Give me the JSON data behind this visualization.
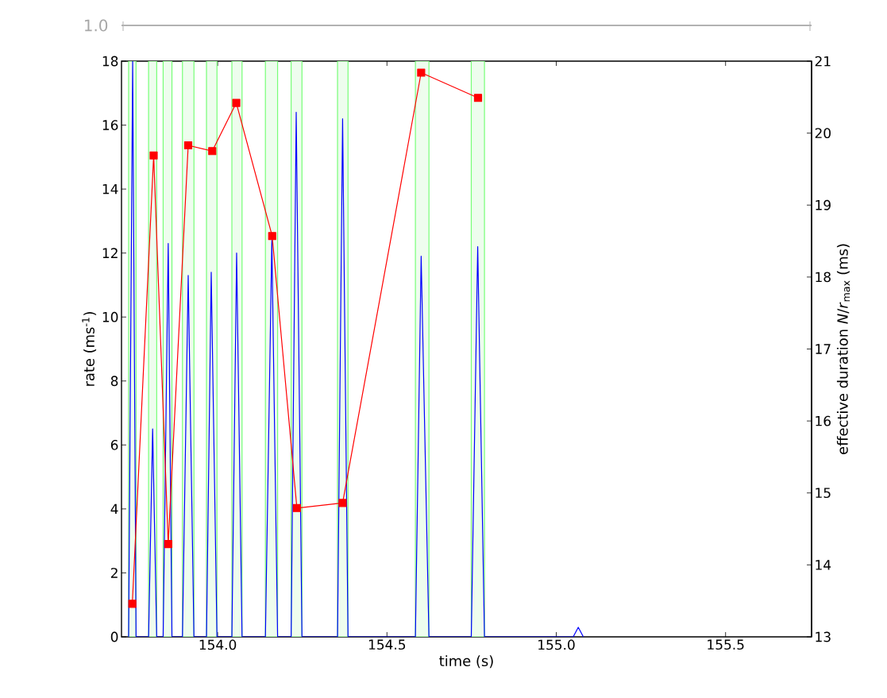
{
  "chart_data": {
    "type": "line",
    "xlabel": "time (s)",
    "ylabel": "rate (ms$^{-1}$)",
    "y2label": "effective duration *N*/*r*$_{max}$ (ms)",
    "annotations": [
      "1.0"
    ],
    "xlim": [
      153.716,
      155.754
    ],
    "ylim": [
      0,
      18
    ],
    "y2lim": [
      13,
      21
    ],
    "xticks": [
      {
        "value": 154.0,
        "label": "154.0"
      },
      {
        "value": 154.5,
        "label": "154.5"
      },
      {
        "value": 155.0,
        "label": "155.0"
      },
      {
        "value": 155.5,
        "label": "155.5"
      }
    ],
    "yticks": [
      0,
      2,
      4,
      6,
      8,
      10,
      12,
      14,
      16,
      18
    ],
    "y2ticks": [
      13,
      14,
      15,
      16,
      17,
      18,
      19,
      20,
      21
    ],
    "series": [
      {
        "type": "line",
        "color": "#0000ff",
        "marker": "none",
        "x": [
          153.737,
          153.749,
          153.759,
          153.796,
          153.808,
          153.82,
          153.839,
          153.854,
          153.865,
          153.896,
          153.913,
          153.93,
          153.967,
          153.981,
          153.998,
          154.042,
          154.056,
          154.072,
          154.141,
          154.16,
          154.177,
          154.217,
          154.232,
          154.249,
          154.354,
          154.369,
          154.385,
          154.584,
          154.601,
          154.624,
          154.749,
          154.768,
          154.788,
          155.05,
          155.065,
          155.08
        ],
        "values": [
          0,
          18,
          0,
          0,
          6.5,
          0,
          0,
          12.3,
          0,
          0,
          11.3,
          0,
          0,
          11.4,
          0,
          0,
          12.0,
          0,
          0,
          12.4,
          0,
          0,
          16.4,
          0,
          0,
          16.2,
          0,
          0,
          11.9,
          0,
          0,
          12.2,
          0,
          0,
          0.3,
          0
        ]
      },
      {
        "type": "line",
        "color": "#ff0000",
        "marker": "square",
        "axis": "y2",
        "x": [
          153.748,
          153.811,
          153.854,
          153.913,
          153.984,
          154.055,
          154.161,
          154.234,
          154.369,
          154.601,
          154.769
        ],
        "values": [
          13.46,
          19.69,
          14.29,
          19.83,
          19.75,
          20.42,
          18.57,
          14.79,
          14.86,
          20.84,
          20.49
        ]
      }
    ],
    "bands": [
      {
        "axis": "x",
        "from": 153.737,
        "to": 153.759,
        "color": "#eefdee"
      },
      {
        "axis": "x",
        "from": 153.796,
        "to": 153.82,
        "color": "#eefdee"
      },
      {
        "axis": "x",
        "from": 153.839,
        "to": 153.865,
        "color": "#eefdee"
      },
      {
        "axis": "x",
        "from": 153.896,
        "to": 153.93,
        "color": "#eefdee"
      },
      {
        "axis": "x",
        "from": 153.967,
        "to": 153.998,
        "color": "#eefdee"
      },
      {
        "axis": "x",
        "from": 154.042,
        "to": 154.072,
        "color": "#eefdee"
      },
      {
        "axis": "x",
        "from": 154.141,
        "to": 154.177,
        "color": "#eefdee"
      },
      {
        "axis": "x",
        "from": 154.217,
        "to": 154.249,
        "color": "#eefdee"
      },
      {
        "axis": "x",
        "from": 154.354,
        "to": 154.385,
        "color": "#eefdee"
      },
      {
        "axis": "x",
        "from": 154.584,
        "to": 154.624,
        "color": "#eefdee"
      },
      {
        "axis": "x",
        "from": 154.749,
        "to": 154.788,
        "color": "#eefdee"
      }
    ]
  }
}
